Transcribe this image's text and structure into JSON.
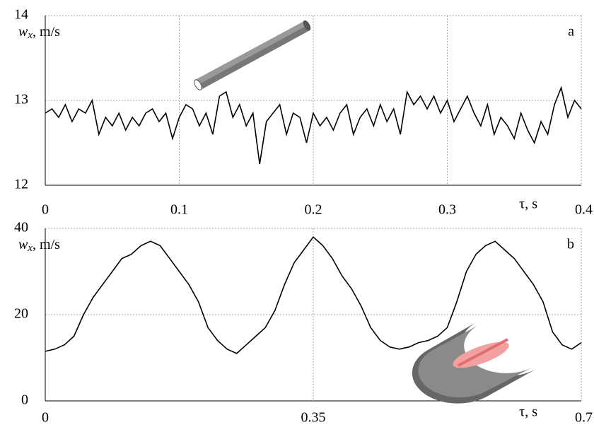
{
  "chart_data": [
    {
      "type": "line",
      "panel_label": "a",
      "ylabel": "w",
      "ylabel_sub": "x",
      "ylabel_unit": ", m/s",
      "xlabel": "τ, s",
      "color": "#000000",
      "grid": true,
      "xlim": [
        0,
        0.4
      ],
      "xticks": [
        0,
        0.1,
        0.2,
        0.3,
        0.4
      ],
      "ylim": [
        12,
        14
      ],
      "yticks": [
        12,
        13,
        14
      ],
      "x": [
        0,
        0.005,
        0.01,
        0.015,
        0.02,
        0.025,
        0.03,
        0.035,
        0.04,
        0.045,
        0.05,
        0.055,
        0.06,
        0.065,
        0.07,
        0.075,
        0.08,
        0.085,
        0.09,
        0.095,
        0.1,
        0.105,
        0.11,
        0.115,
        0.12,
        0.125,
        0.13,
        0.135,
        0.14,
        0.145,
        0.15,
        0.155,
        0.16,
        0.165,
        0.17,
        0.175,
        0.18,
        0.185,
        0.19,
        0.195,
        0.2,
        0.205,
        0.21,
        0.215,
        0.22,
        0.225,
        0.23,
        0.235,
        0.24,
        0.245,
        0.25,
        0.255,
        0.26,
        0.265,
        0.27,
        0.275,
        0.28,
        0.285,
        0.29,
        0.295,
        0.3,
        0.305,
        0.31,
        0.315,
        0.32,
        0.325,
        0.33,
        0.335,
        0.34,
        0.345,
        0.35,
        0.355,
        0.36,
        0.365,
        0.37,
        0.375,
        0.38,
        0.385,
        0.39,
        0.395,
        0.4
      ],
      "values": [
        12.85,
        12.9,
        12.8,
        12.95,
        12.75,
        12.9,
        12.85,
        13.0,
        12.6,
        12.8,
        12.7,
        12.85,
        12.65,
        12.8,
        12.7,
        12.85,
        12.9,
        12.75,
        12.85,
        12.55,
        12.8,
        12.95,
        12.9,
        12.7,
        12.85,
        12.6,
        13.05,
        13.1,
        12.8,
        12.95,
        12.7,
        12.85,
        12.25,
        12.75,
        12.85,
        12.95,
        12.6,
        12.85,
        12.8,
        12.5,
        12.85,
        12.7,
        12.8,
        12.65,
        12.85,
        12.95,
        12.6,
        12.8,
        12.9,
        12.7,
        12.95,
        12.75,
        12.9,
        12.6,
        13.1,
        12.95,
        13.05,
        12.9,
        13.05,
        12.85,
        13.0,
        12.75,
        12.9,
        13.05,
        12.85,
        12.7,
        12.95,
        12.6,
        12.8,
        12.7,
        12.55,
        12.85,
        12.65,
        12.5,
        12.75,
        12.6,
        12.95,
        13.15,
        12.8,
        13.0,
        12.9
      ]
    },
    {
      "type": "line",
      "panel_label": "b",
      "ylabel": "w",
      "ylabel_sub": "x",
      "ylabel_unit": ", m/s",
      "xlabel": "τ, s",
      "color": "#000000",
      "grid": true,
      "xlim": [
        0,
        0.7
      ],
      "xticks": [
        0,
        0.35,
        0.7
      ],
      "ylim": [
        0,
        40
      ],
      "yticks": [
        0,
        20,
        40
      ],
      "x": [
        0,
        0.0125,
        0.025,
        0.0375,
        0.05,
        0.0625,
        0.075,
        0.0875,
        0.1,
        0.1125,
        0.125,
        0.1375,
        0.15,
        0.1625,
        0.175,
        0.1875,
        0.2,
        0.2125,
        0.225,
        0.2375,
        0.25,
        0.2625,
        0.275,
        0.2875,
        0.3,
        0.3125,
        0.325,
        0.3375,
        0.35,
        0.3625,
        0.375,
        0.3875,
        0.4,
        0.4125,
        0.425,
        0.4375,
        0.45,
        0.4625,
        0.475,
        0.4875,
        0.5,
        0.5125,
        0.525,
        0.5375,
        0.55,
        0.5625,
        0.575,
        0.5875,
        0.6,
        0.6125,
        0.625,
        0.6375,
        0.65,
        0.6625,
        0.675,
        0.6875,
        0.7
      ],
      "values": [
        11.5,
        12,
        13,
        15,
        20,
        24,
        27,
        30,
        33,
        34,
        36,
        37,
        36,
        33,
        30,
        27,
        23,
        17,
        14,
        12,
        11,
        13,
        15,
        17,
        21,
        27,
        32,
        35,
        38,
        36,
        33,
        29,
        26,
        22,
        17,
        14,
        12.5,
        12,
        12.5,
        13.5,
        14,
        15,
        17,
        23,
        30,
        34,
        36,
        37,
        35,
        33,
        30,
        27,
        23,
        16,
        13,
        12,
        13.5
      ]
    }
  ]
}
